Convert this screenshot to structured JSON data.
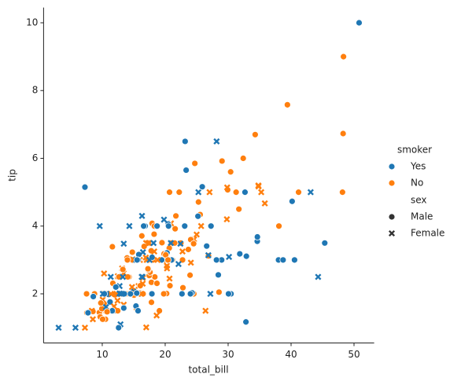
{
  "chart_data": {
    "type": "scatter",
    "xlabel": "total_bill",
    "ylabel": "tip",
    "xlim": [
      0.68,
      53.2
    ],
    "ylim": [
      0.55,
      10.45
    ],
    "xticks": [
      10,
      20,
      30,
      40,
      50
    ],
    "yticks": [
      2,
      4,
      6,
      8,
      10
    ],
    "hue_legend": {
      "title": "smoker",
      "entries": [
        {
          "name": "Yes",
          "color": "#1f77b4"
        },
        {
          "name": "No",
          "color": "#ff7f0e"
        }
      ]
    },
    "style_legend": {
      "title": "sex",
      "entries": [
        {
          "name": "Male",
          "marker": "circle"
        },
        {
          "name": "Female",
          "marker": "x"
        }
      ]
    },
    "x": [
      16.99,
      10.34,
      21.01,
      23.68,
      24.59,
      25.29,
      8.77,
      26.88,
      15.04,
      14.78,
      10.27,
      35.26,
      15.42,
      18.43,
      14.83,
      21.58,
      10.33,
      16.29,
      16.97,
      20.65,
      17.92,
      20.29,
      15.77,
      39.42,
      19.82,
      17.81,
      13.37,
      12.69,
      21.7,
      19.65,
      9.55,
      18.35,
      15.06,
      20.69,
      17.78,
      24.06,
      16.31,
      16.93,
      18.69,
      31.27,
      16.04,
      17.46,
      13.94,
      9.68,
      30.4,
      18.29,
      22.23,
      32.4,
      28.55,
      18.04,
      12.54,
      10.29,
      34.81,
      9.94,
      25.56,
      19.49,
      38.01,
      26.41,
      11.24,
      48.27,
      20.29,
      13.81,
      11.02,
      18.29,
      17.59,
      20.08,
      16.45,
      3.07,
      20.23,
      15.01,
      12.02,
      17.07,
      26.86,
      25.28,
      14.73,
      10.51,
      17.92,
      27.2,
      22.76,
      17.29,
      19.44,
      16.66,
      10.07,
      32.68,
      15.98,
      34.83,
      13.03,
      18.28,
      24.71,
      21.16,
      28.97,
      22.49,
      5.75,
      16.32,
      22.75,
      40.17,
      27.28,
      12.03,
      21.01,
      12.46,
      11.35,
      15.38,
      44.3,
      22.42,
      20.92,
      15.36,
      20.49,
      25.21,
      18.24,
      14.31,
      14.0,
      7.25,
      38.07,
      23.95,
      25.71,
      17.31,
      29.93,
      10.65,
      12.43,
      24.08,
      11.69,
      13.42,
      14.26,
      15.95,
      12.48,
      29.8,
      8.52,
      14.52,
      11.38,
      22.82,
      19.08,
      20.27,
      11.17,
      12.26,
      18.26,
      8.51,
      10.33,
      14.15,
      16.0,
      13.16,
      17.47,
      34.3,
      41.19,
      27.05,
      16.43,
      8.35,
      18.64,
      11.87,
      9.78,
      7.51,
      14.07,
      13.13,
      17.26,
      24.55,
      19.77,
      29.85,
      48.17,
      25.0,
      13.39,
      16.49,
      21.5,
      12.66,
      16.21,
      13.81,
      17.51,
      24.52,
      20.76,
      31.71,
      10.59,
      10.63,
      50.81,
      15.81,
      7.25,
      31.85,
      16.82,
      32.9,
      17.89,
      14.48,
      9.6,
      34.63,
      34.65,
      23.33,
      45.35,
      23.17,
      40.55,
      20.69,
      20.9,
      30.46,
      18.15,
      23.1,
      15.69,
      19.81,
      28.44,
      15.48,
      16.58,
      7.56,
      10.34,
      43.11,
      13.0,
      13.51,
      18.71,
      12.74,
      13.0,
      16.4,
      20.53,
      16.47,
      26.59,
      38.73,
      24.27,
      12.76,
      30.06,
      25.89,
      48.33,
      13.27,
      28.17,
      12.9,
      28.15,
      11.59,
      7.74,
      30.14,
      12.16,
      13.42,
      8.58,
      15.98,
      13.42,
      16.27,
      10.09,
      20.45,
      13.28,
      22.12,
      24.01,
      15.69,
      11.61,
      10.77,
      15.53,
      10.07,
      12.6,
      32.83,
      35.83,
      29.03,
      27.18,
      22.67,
      17.82,
      18.78
    ],
    "y": [
      1.01,
      1.66,
      3.5,
      3.31,
      3.61,
      4.71,
      2.0,
      3.12,
      1.96,
      3.23,
      1.71,
      5.0,
      1.57,
      3.0,
      3.02,
      3.92,
      1.67,
      3.71,
      3.5,
      3.35,
      4.08,
      2.75,
      2.23,
      7.58,
      3.18,
      2.34,
      2.0,
      2.0,
      4.3,
      3.0,
      1.45,
      2.5,
      3.0,
      2.45,
      3.27,
      3.6,
      2.0,
      3.07,
      2.31,
      5.0,
      2.24,
      2.54,
      3.06,
      1.32,
      5.6,
      3.0,
      5.0,
      6.0,
      2.05,
      3.0,
      2.5,
      2.6,
      5.2,
      1.56,
      4.34,
      3.51,
      3.0,
      1.5,
      1.76,
      6.73,
      3.21,
      2.0,
      1.98,
      3.76,
      2.64,
      3.15,
      2.47,
      1.0,
      2.01,
      2.09,
      1.97,
      3.0,
      3.14,
      5.0,
      2.2,
      1.25,
      3.08,
      4.0,
      3.0,
      2.71,
      3.0,
      3.4,
      1.83,
      5.0,
      2.03,
      5.17,
      2.0,
      4.0,
      5.85,
      3.0,
      3.0,
      3.5,
      1.0,
      4.3,
      3.25,
      4.73,
      4.0,
      1.5,
      3.0,
      1.5,
      2.5,
      3.0,
      2.5,
      3.48,
      4.08,
      1.64,
      4.06,
      4.29,
      3.76,
      4.0,
      3.0,
      1.0,
      4.0,
      2.55,
      4.0,
      3.5,
      5.07,
      1.5,
      1.8,
      2.92,
      2.31,
      1.68,
      2.5,
      2.0,
      2.52,
      4.2,
      1.48,
      2.0,
      2.0,
      2.18,
      1.5,
      2.83,
      1.5,
      2.0,
      3.25,
      1.25,
      2.0,
      2.0,
      2.0,
      2.75,
      3.5,
      6.7,
      5.0,
      5.0,
      2.3,
      1.5,
      1.36,
      1.63,
      1.73,
      2.0,
      2.5,
      2.0,
      2.74,
      2.0,
      2.0,
      5.14,
      5.0,
      3.75,
      2.61,
      2.0,
      3.5,
      2.5,
      2.0,
      2.0,
      3.0,
      3.48,
      2.24,
      4.5,
      1.61,
      2.0,
      10.0,
      3.16,
      5.15,
      3.18,
      4.0,
      3.11,
      2.0,
      2.0,
      4.0,
      3.55,
      3.68,
      5.65,
      3.5,
      6.5,
      3.0,
      5.0,
      3.5,
      2.0,
      3.5,
      4.0,
      1.5,
      4.19,
      2.56,
      2.02,
      4.0,
      1.44,
      2.0,
      5.0,
      2.0,
      2.0,
      4.0,
      2.01,
      2.0,
      2.5,
      4.0,
      3.23,
      3.41,
      3.0,
      2.03,
      2.23,
      2.0,
      5.16,
      9.0,
      2.5,
      6.5,
      1.1,
      3.0,
      1.5,
      1.44,
      3.09,
      2.2,
      3.48,
      1.92,
      3.0,
      1.58,
      2.5,
      2.0,
      3.0,
      2.72,
      2.88,
      2.0,
      3.0,
      3.39,
      1.47,
      3.0,
      1.25,
      1.0,
      1.17,
      4.67,
      5.92,
      2.0,
      2.0,
      1.75,
      3.0
    ],
    "sex": [
      "Female",
      "Male",
      "Male",
      "Male",
      "Female",
      "Male",
      "Male",
      "Male",
      "Male",
      "Male",
      "Male",
      "Female",
      "Male",
      "Male",
      "Female",
      "Male",
      "Female",
      "Male",
      "Female",
      "Male",
      "Male",
      "Female",
      "Female",
      "Male",
      "Male",
      "Male",
      "Male",
      "Male",
      "Male",
      "Female",
      "Male",
      "Male",
      "Female",
      "Female",
      "Male",
      "Male",
      "Male",
      "Female",
      "Male",
      "Male",
      "Male",
      "Male",
      "Male",
      "Male",
      "Male",
      "Male",
      "Male",
      "Male",
      "Male",
      "Male",
      "Male",
      "Female",
      "Female",
      "Male",
      "Male",
      "Male",
      "Male",
      "Female",
      "Male",
      "Male",
      "Male",
      "Male",
      "Male",
      "Male",
      "Male",
      "Male",
      "Female",
      "Female",
      "Male",
      "Male",
      "Male",
      "Female",
      "Female",
      "Female",
      "Female",
      "Male",
      "Male",
      "Male",
      "Male",
      "Male",
      "Male",
      "Male",
      "Female",
      "Male",
      "Male",
      "Female",
      "Male",
      "Male",
      "Male",
      "Male",
      "Male",
      "Male",
      "Female",
      "Female",
      "Female",
      "Male",
      "Male",
      "Male",
      "Male",
      "Male",
      "Female",
      "Female",
      "Female",
      "Female",
      "Female",
      "Male",
      "Male",
      "Male",
      "Male",
      "Female",
      "Male",
      "Female",
      "Male",
      "Male",
      "Female",
      "Female",
      "Male",
      "Female",
      "Female",
      "Female",
      "Male",
      "Female",
      "Male",
      "Male",
      "Female",
      "Female",
      "Male",
      "Female",
      "Female",
      "Male",
      "Male",
      "Female",
      "Female",
      "Female",
      "Female",
      "Female",
      "Female",
      "Female",
      "Male",
      "Female",
      "Female",
      "Male",
      "Male",
      "Female",
      "Female",
      "Female",
      "Female",
      "Female",
      "Male",
      "Male",
      "Male",
      "Male",
      "Male",
      "Male",
      "Male",
      "Female",
      "Male",
      "Female",
      "Female",
      "Male",
      "Male",
      "Male",
      "Female",
      "Male",
      "Female",
      "Male",
      "Male",
      "Male",
      "Female",
      "Female",
      "Male",
      "Male",
      "Male",
      "Male",
      "Male",
      "Male",
      "Male",
      "Male",
      "Female",
      "Male",
      "Male",
      "Male",
      "Male",
      "Male",
      "Male",
      "Male",
      "Female",
      "Male",
      "Female",
      "Male",
      "Male",
      "Female",
      "Male",
      "Male",
      "Male",
      "Male",
      "Male",
      "Female",
      "Female",
      "Male",
      "Male",
      "Female",
      "Female",
      "Female",
      "Male",
      "Female",
      "Male",
      "Male",
      "Male",
      "Female",
      "Male",
      "Male",
      "Male",
      "Female",
      "Female",
      "Female",
      "Male",
      "Male",
      "Male",
      "Female",
      "Male",
      "Female",
      "Male",
      "Female",
      "Male",
      "Female",
      "Female",
      "Male",
      "Male",
      "Female",
      "Male",
      "Male",
      "Male",
      "Male",
      "Male",
      "Male",
      "Male",
      "Male",
      "Female",
      "Male",
      "Female",
      "Male",
      "Male",
      "Female"
    ],
    "smoker": [
      "No",
      "No",
      "No",
      "No",
      "No",
      "No",
      "No",
      "No",
      "No",
      "No",
      "No",
      "No",
      "No",
      "No",
      "No",
      "No",
      "No",
      "No",
      "No",
      "No",
      "No",
      "No",
      "No",
      "No",
      "No",
      "No",
      "No",
      "No",
      "No",
      "No",
      "No",
      "No",
      "No",
      "No",
      "No",
      "No",
      "No",
      "No",
      "No",
      "No",
      "No",
      "No",
      "No",
      "No",
      "No",
      "No",
      "No",
      "No",
      "No",
      "No",
      "No",
      "No",
      "No",
      "No",
      "No",
      "No",
      "Yes",
      "No",
      "Yes",
      "No",
      "Yes",
      "Yes",
      "Yes",
      "Yes",
      "No",
      "No",
      "No",
      "Yes",
      "No",
      "Yes",
      "No",
      "No",
      "Yes",
      "Yes",
      "No",
      "No",
      "Yes",
      "No",
      "No",
      "No",
      "Yes",
      "No",
      "No",
      "Yes",
      "No",
      "No",
      "No",
      "No",
      "No",
      "No",
      "Yes",
      "No",
      "Yes",
      "Yes",
      "No",
      "Yes",
      "Yes",
      "Yes",
      "Yes",
      "No",
      "Yes",
      "Yes",
      "Yes",
      "Yes",
      "No",
      "Yes",
      "Yes",
      "Yes",
      "No",
      "Yes",
      "No",
      "No",
      "No",
      "No",
      "No",
      "No",
      "No",
      "No",
      "No",
      "No",
      "No",
      "No",
      "No",
      "No",
      "No",
      "No",
      "No",
      "No",
      "No",
      "No",
      "No",
      "No",
      "No",
      "No",
      "No",
      "No",
      "No",
      "No",
      "Yes",
      "No",
      "No",
      "No",
      "No",
      "No",
      "No",
      "No",
      "No",
      "No",
      "No",
      "No",
      "No",
      "No",
      "No",
      "No",
      "No",
      "No",
      "No",
      "No",
      "No",
      "No",
      "No",
      "No",
      "No",
      "No",
      "Yes",
      "No",
      "No",
      "No",
      "Yes",
      "Yes",
      "Yes",
      "Yes",
      "Yes",
      "Yes",
      "Yes",
      "Yes",
      "Yes",
      "Yes",
      "Yes",
      "Yes",
      "Yes",
      "Yes",
      "Yes",
      "Yes",
      "Yes",
      "No",
      "Yes",
      "Yes",
      "Yes",
      "Yes",
      "Yes",
      "Yes",
      "Yes",
      "Yes",
      "Yes",
      "No",
      "Yes",
      "Yes",
      "Yes",
      "Yes",
      "Yes",
      "Yes",
      "Yes",
      "Yes",
      "Yes",
      "Yes",
      "Yes",
      "Yes",
      "Yes",
      "Yes",
      "Yes",
      "Yes",
      "No",
      "Yes",
      "Yes",
      "Yes",
      "Yes",
      "Yes",
      "Yes",
      "Yes",
      "Yes",
      "Yes",
      "Yes",
      "No",
      "Yes",
      "Yes",
      "Yes",
      "No",
      "No",
      "Yes",
      "Yes",
      "Yes",
      "No",
      "No",
      "Yes",
      "No",
      "Yes",
      "Yes",
      "No",
      "No",
      "Yes",
      "Yes",
      "No",
      "No"
    ]
  }
}
